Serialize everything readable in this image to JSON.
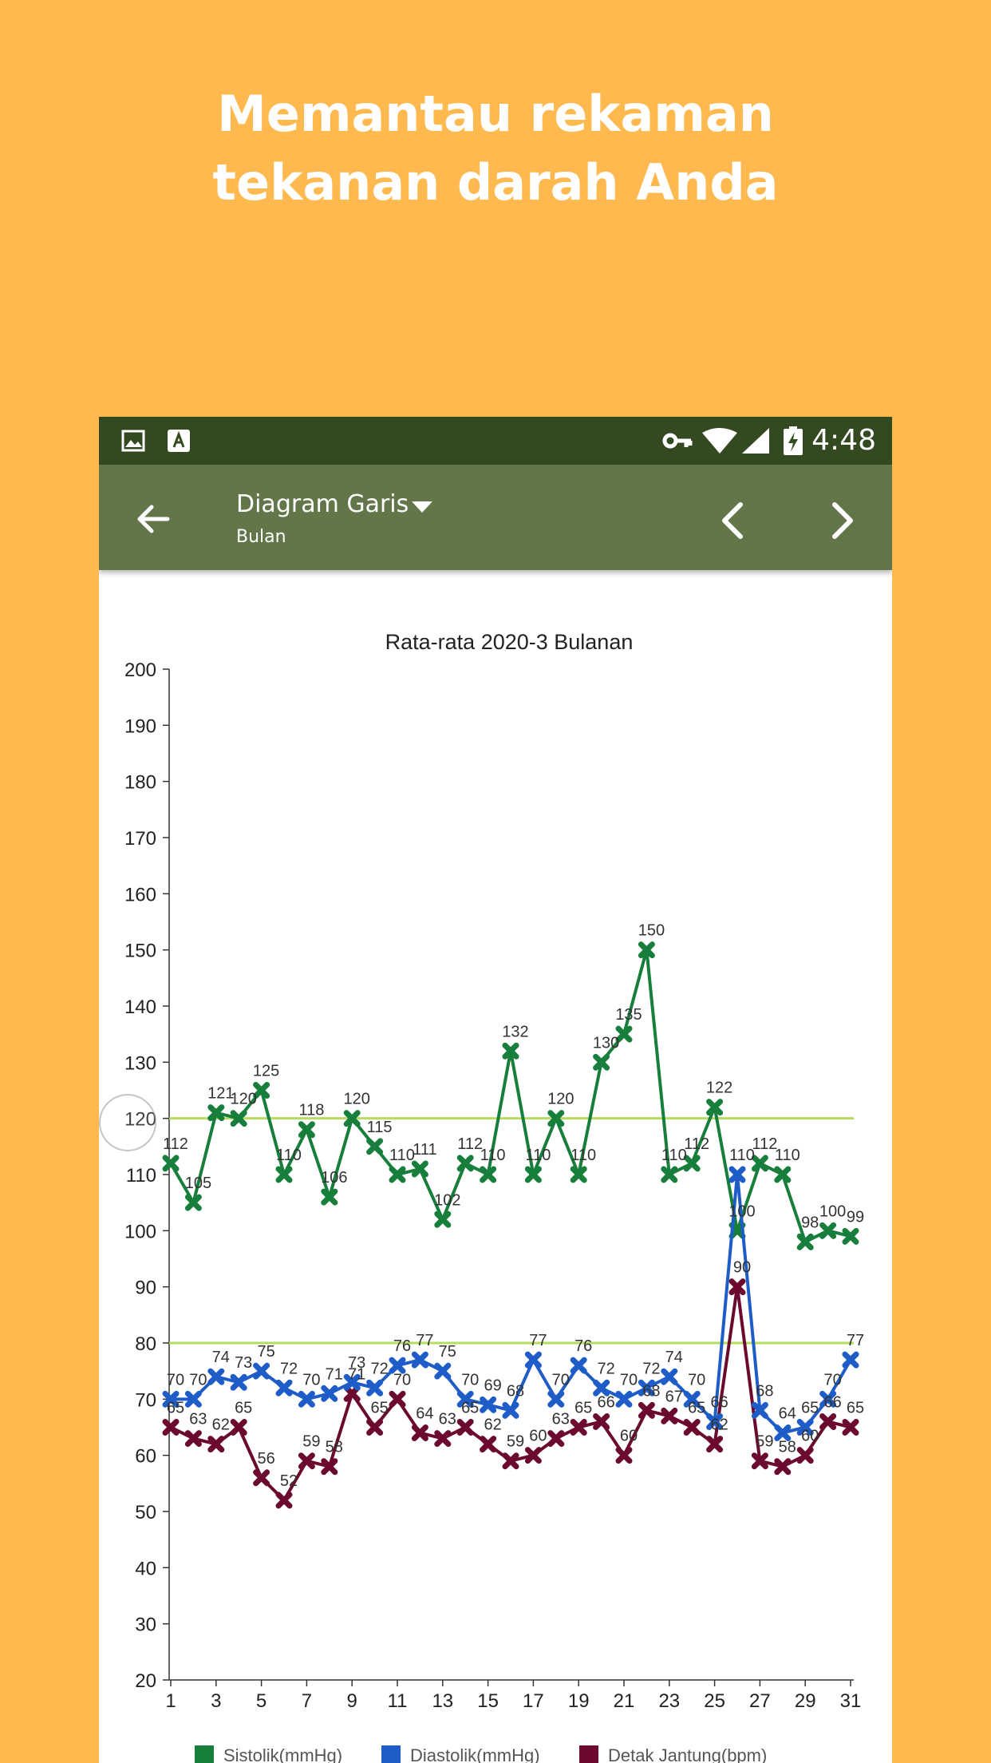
{
  "promo": {
    "headline_line1": "Memantau rekaman",
    "headline_line2": "tekanan darah Anda"
  },
  "statusbar": {
    "time": "4:48",
    "icons": [
      "image-icon",
      "font-icon",
      "key-icon",
      "wifi-icon",
      "signal-icon",
      "battery-charging-icon"
    ]
  },
  "appbar": {
    "title": "Diagram Garis",
    "subtitle": "Bulan",
    "icons": [
      "back-arrow-icon",
      "dropdown-caret-icon",
      "chevron-left-icon",
      "chevron-right-icon"
    ]
  },
  "colors": {
    "background": "#FFB94F",
    "statusbar": "#334A20",
    "appbar": "#62764A",
    "systolic": "#177E3C",
    "diastolic": "#1E5DC8",
    "heart_rate": "#6B0A2E",
    "reference_line": "#B5DC62"
  },
  "chart_data": {
    "type": "line",
    "title": "Rata-rata 2020-3 Bulanan",
    "xlabel": "",
    "ylabel": "",
    "x": [
      1,
      2,
      3,
      4,
      5,
      6,
      7,
      8,
      9,
      10,
      11,
      12,
      13,
      14,
      15,
      16,
      17,
      18,
      19,
      20,
      21,
      22,
      23,
      24,
      25,
      26,
      27,
      28,
      29,
      30,
      31
    ],
    "xticks": [
      1,
      3,
      5,
      7,
      9,
      11,
      13,
      15,
      17,
      19,
      21,
      23,
      25,
      27,
      29,
      31
    ],
    "ylim": [
      20,
      200
    ],
    "yticks": [
      20,
      30,
      40,
      50,
      60,
      70,
      80,
      90,
      100,
      110,
      120,
      130,
      140,
      150,
      160,
      170,
      180,
      190,
      200
    ],
    "reference_lines": [
      120,
      80
    ],
    "grid": false,
    "legend_position": "bottom",
    "series": [
      {
        "name": "Sistolik(mmHg)",
        "color": "#177E3C",
        "values": [
          112,
          105,
          121,
          120,
          125,
          110,
          118,
          106,
          120,
          115,
          110,
          111,
          102,
          112,
          110,
          132,
          110,
          120,
          110,
          130,
          135,
          150,
          110,
          112,
          122,
          100,
          112,
          110,
          98,
          100,
          99
        ]
      },
      {
        "name": "Diastolik(mmHg)",
        "color": "#1E5DC8",
        "values": [
          70,
          70,
          74,
          73,
          75,
          72,
          70,
          71,
          73,
          72,
          76,
          77,
          75,
          70,
          69,
          68,
          77,
          70,
          76,
          72,
          70,
          72,
          74,
          70,
          66,
          110,
          68,
          64,
          65,
          70,
          77
        ]
      },
      {
        "name": "Detak Jantung(bpm)",
        "color": "#6B0A2E",
        "values": [
          65,
          63,
          62,
          65,
          56,
          52,
          59,
          58,
          71,
          65,
          70,
          64,
          63,
          65,
          62,
          59,
          60,
          63,
          65,
          66,
          60,
          68,
          67,
          65,
          62,
          90,
          59,
          58,
          60,
          66,
          65
        ]
      }
    ]
  }
}
